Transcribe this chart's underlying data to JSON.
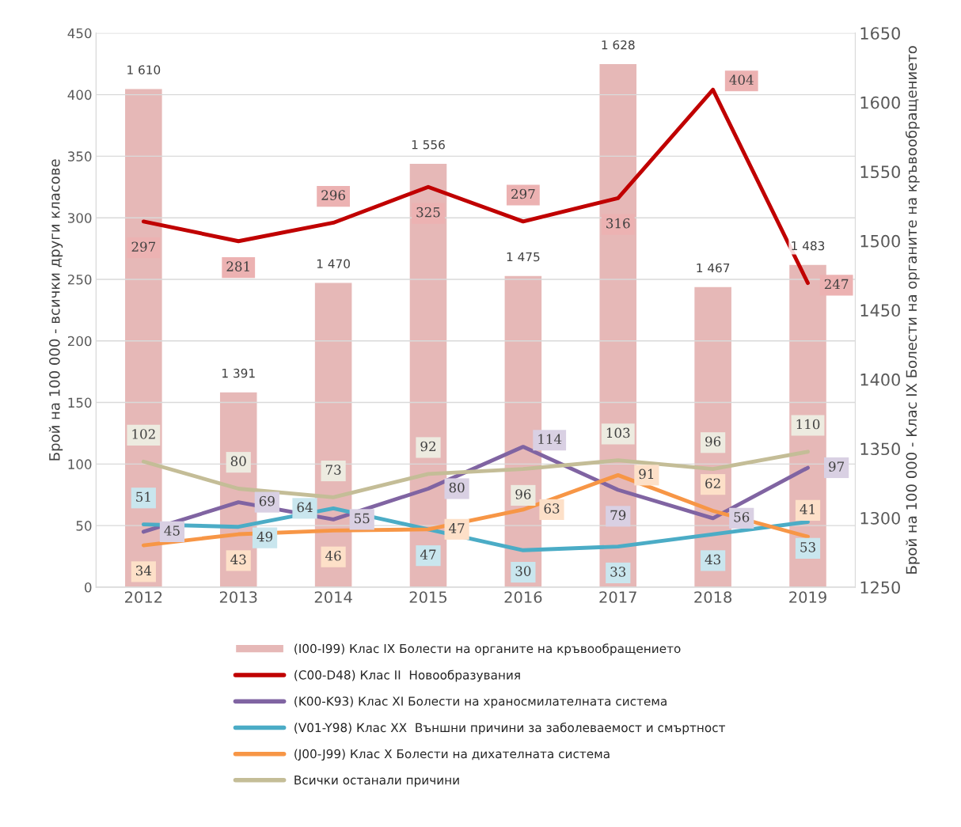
{
  "chart_data": {
    "type": "bar",
    "categories": [
      "2012",
      "2013",
      "2014",
      "2015",
      "2016",
      "2017",
      "2018",
      "2019"
    ],
    "ylabel": "Брой на 100 000 - всички други класове",
    "y2label": "Брой на 100 000 - Клас IX Болести на органите на кръвообращението",
    "ylim": [
      0,
      450
    ],
    "yticks": [
      0,
      50,
      100,
      150,
      200,
      250,
      300,
      350,
      400,
      450
    ],
    "y2lim": [
      1250,
      1650
    ],
    "y2ticks": [
      1250,
      1300,
      1350,
      1400,
      1450,
      1500,
      1550,
      1600,
      1650
    ],
    "grid": "y",
    "legend": "bottom",
    "data_labels": true,
    "line_style": "solid",
    "marker": "none",
    "series": [
      {
        "name": "(I00-I99) Клас IX Болести на органите на кръвообращението",
        "axis": "y2",
        "color": "#e6b8b7",
        "values": [
          1610,
          1391,
          1470,
          1556,
          1475,
          1628,
          1467,
          1483
        ],
        "value_labels": [
          "1 610",
          "1 391",
          "1 470",
          "1 556",
          "1 475",
          "1 628",
          "1 467",
          "1 483"
        ]
      },
      {
        "name": "(C00-D48) Клас II  Новообразувания",
        "type": "line",
        "color": "#c00000",
        "values": [
          297,
          281,
          296,
          325,
          297,
          316,
          404,
          247
        ]
      },
      {
        "name": "(K00-K93) Клас XI Болести на храносмилателната система",
        "type": "line",
        "color": "#8064a2",
        "values": [
          45,
          69,
          55,
          80,
          114,
          79,
          56,
          97
        ]
      },
      {
        "name": "(V01-Y98) Клас XX  Външни причини за заболеваемост и смъртност",
        "type": "line",
        "color": "#4bacc6",
        "values": [
          51,
          49,
          64,
          47,
          30,
          33,
          43,
          53
        ]
      },
      {
        "name": "(J00-J99) Клас X Болести на дихателната система",
        "type": "line",
        "color": "#f79646",
        "values": [
          34,
          43,
          46,
          47,
          63,
          91,
          62,
          41
        ]
      },
      {
        "name": "Всички останали причини",
        "type": "line",
        "color": "#c4bd97",
        "values": [
          102,
          80,
          73,
          92,
          96,
          103,
          96,
          110
        ]
      }
    ]
  }
}
